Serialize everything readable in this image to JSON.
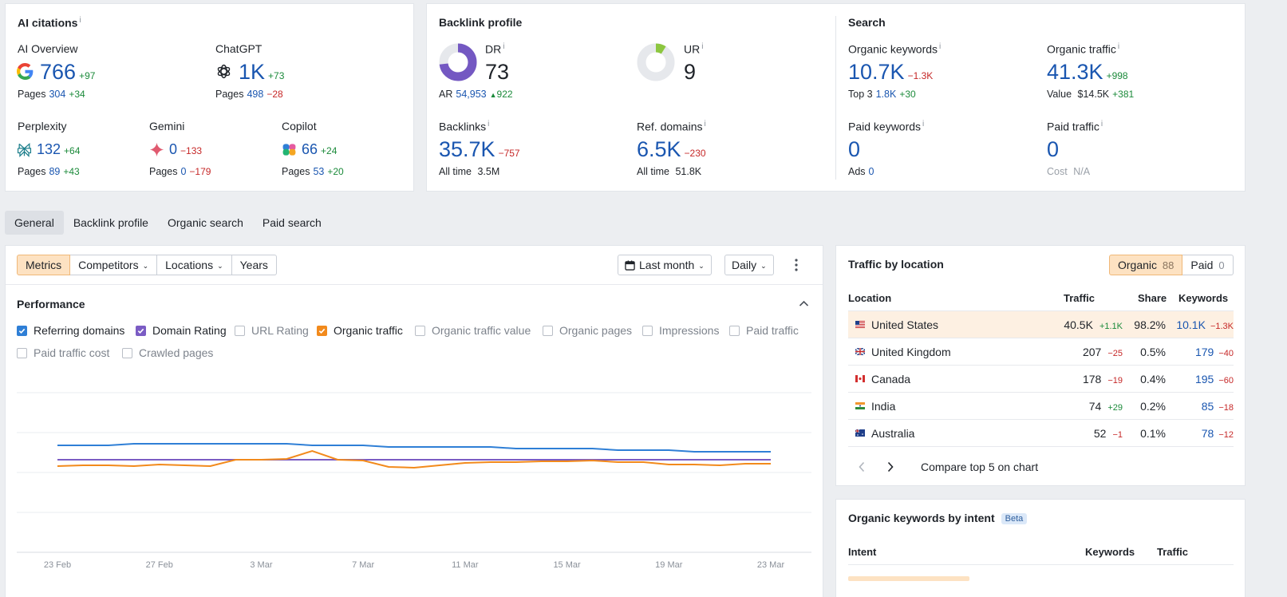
{
  "ai_citations": {
    "title": "AI citations",
    "info": "i",
    "ai_overview": {
      "label": "AI Overview",
      "value": "766",
      "delta": "+97",
      "pages_label": "Pages",
      "pages": "304",
      "pages_delta": "+34"
    },
    "chatgpt": {
      "label": "ChatGPT",
      "value": "1K",
      "delta": "+73",
      "pages_label": "Pages",
      "pages": "498",
      "pages_delta": "−28"
    },
    "perplexity": {
      "label": "Perplexity",
      "value": "132",
      "delta": "+64",
      "pages_label": "Pages",
      "pages": "89",
      "pages_delta": "+43"
    },
    "gemini": {
      "label": "Gemini",
      "value": "0",
      "delta": "−133",
      "pages_label": "Pages",
      "pages": "0",
      "pages_delta": "−179"
    },
    "copilot": {
      "label": "Copilot",
      "value": "66",
      "delta": "+24",
      "pages_label": "Pages",
      "pages": "53",
      "pages_delta": "+20"
    }
  },
  "backlink_profile": {
    "title": "Backlink profile",
    "dr": {
      "label": "DR",
      "value": "73",
      "fill_fraction": 0.73
    },
    "ar": {
      "label": "AR",
      "value": "54,953",
      "delta": "922"
    },
    "ur": {
      "label": "UR",
      "value": "9",
      "fill_fraction": 0.09
    },
    "backlinks": {
      "label": "Backlinks",
      "value": "35.7K",
      "delta": "−757",
      "sub_label": "All time",
      "sub_value": "3.5M"
    },
    "ref_domains": {
      "label": "Ref. domains",
      "value": "6.5K",
      "delta": "−230",
      "sub_label": "All time",
      "sub_value": "51.8K"
    }
  },
  "search": {
    "title": "Search",
    "organic_keywords": {
      "label": "Organic keywords",
      "value": "10.7K",
      "delta": "−1.3K",
      "sub_label": "Top 3",
      "sub_value": "1.8K",
      "sub_delta": "+30"
    },
    "organic_traffic": {
      "label": "Organic traffic",
      "value": "41.3K",
      "delta": "+998",
      "sub_label": "Value",
      "sub_value": "$14.5K",
      "sub_delta": "+381"
    },
    "paid_keywords": {
      "label": "Paid keywords",
      "value": "0",
      "sub_label": "Ads",
      "sub_value": "0"
    },
    "paid_traffic": {
      "label": "Paid traffic",
      "value": "0",
      "sub_label": "Cost",
      "sub_value": "N/A"
    }
  },
  "tabs": [
    "General",
    "Backlink profile",
    "Organic search",
    "Paid search"
  ],
  "toolbar": {
    "metrics": "Metrics",
    "competitors": "Competitors",
    "locations": "Locations",
    "years": "Years",
    "period": "Last month",
    "granularity": "Daily"
  },
  "performance": {
    "title": "Performance",
    "checkboxes": [
      {
        "label": "Referring domains",
        "checked": true,
        "color": "#2f7fd6"
      },
      {
        "label": "Domain Rating",
        "checked": true,
        "color": "#7b5cc4"
      },
      {
        "label": "URL Rating",
        "checked": false
      },
      {
        "label": "Organic traffic",
        "checked": true,
        "color": "#f28a1c"
      },
      {
        "label": "Organic traffic value",
        "checked": false
      },
      {
        "label": "Organic pages",
        "checked": false
      },
      {
        "label": "Impressions",
        "checked": false
      },
      {
        "label": "Paid traffic",
        "checked": false
      },
      {
        "label": "Paid traffic cost",
        "checked": false
      },
      {
        "label": "Crawled pages",
        "checked": false
      }
    ]
  },
  "chart_data": {
    "type": "line",
    "x_ticks": [
      "23 Feb",
      "27 Feb",
      "3 Mar",
      "7 Mar",
      "11 Mar",
      "15 Mar",
      "19 Mar",
      "23 Mar"
    ],
    "series": [
      {
        "name": "Referring domains",
        "color": "#2f7fd6",
        "values": [
          0.67,
          0.67,
          0.67,
          0.68,
          0.68,
          0.68,
          0.68,
          0.68,
          0.68,
          0.68,
          0.67,
          0.67,
          0.67,
          0.66,
          0.66,
          0.66,
          0.66,
          0.66,
          0.65,
          0.65,
          0.65,
          0.65,
          0.64,
          0.64,
          0.64,
          0.63,
          0.63,
          0.63,
          0.63
        ]
      },
      {
        "name": "Domain Rating",
        "color": "#7b5cc4",
        "values": [
          0.58,
          0.58,
          0.58,
          0.58,
          0.58,
          0.58,
          0.58,
          0.58,
          0.58,
          0.58,
          0.58,
          0.58,
          0.58,
          0.58,
          0.58,
          0.58,
          0.58,
          0.58,
          0.58,
          0.58,
          0.58,
          0.58,
          0.58,
          0.58,
          0.58,
          0.58,
          0.58,
          0.58,
          0.58
        ]
      },
      {
        "name": "Organic traffic",
        "color": "#f28a1c",
        "values": [
          0.54,
          0.545,
          0.545,
          0.54,
          0.55,
          0.545,
          0.54,
          0.58,
          0.58,
          0.585,
          0.635,
          0.58,
          0.575,
          0.535,
          0.53,
          0.545,
          0.56,
          0.565,
          0.565,
          0.57,
          0.57,
          0.575,
          0.565,
          0.565,
          0.55,
          0.55,
          0.545,
          0.555,
          0.555
        ]
      }
    ],
    "ylim": [
      0,
      1
    ],
    "grid": true
  },
  "traffic_by_location": {
    "title": "Traffic by location",
    "organic_label": "Organic",
    "organic_count": "88",
    "paid_label": "Paid",
    "paid_count": "0",
    "columns": [
      "Location",
      "Traffic",
      "Share",
      "Keywords"
    ],
    "rows": [
      {
        "country": "United States",
        "traffic": "40.5K",
        "traffic_delta": "+1.1K",
        "share": "98.2%",
        "keywords": "10.1K",
        "keywords_delta": "−1.3K"
      },
      {
        "country": "United Kingdom",
        "traffic": "207",
        "traffic_delta": "−25",
        "share": "0.5%",
        "keywords": "179",
        "keywords_delta": "−40"
      },
      {
        "country": "Canada",
        "traffic": "178",
        "traffic_delta": "−19",
        "share": "0.4%",
        "keywords": "195",
        "keywords_delta": "−60"
      },
      {
        "country": "India",
        "traffic": "74",
        "traffic_delta": "+29",
        "share": "0.2%",
        "keywords": "85",
        "keywords_delta": "−18"
      },
      {
        "country": "Australia",
        "traffic": "52",
        "traffic_delta": "−1",
        "share": "0.1%",
        "keywords": "78",
        "keywords_delta": "−12"
      }
    ],
    "compare_label": "Compare top 5 on chart"
  },
  "keywords_by_intent": {
    "title": "Organic keywords by intent",
    "badge": "Beta",
    "columns": [
      "Intent",
      "Keywords",
      "Traffic"
    ]
  }
}
